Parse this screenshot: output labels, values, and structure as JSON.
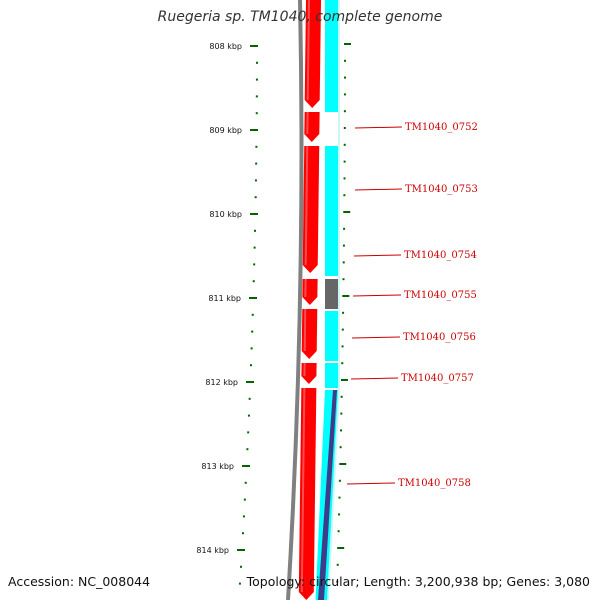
{
  "title": "Ruegeria sp. TM1040, complete genome",
  "accession": "Accession: NC_008044",
  "summary": "Topology: circular; Length: 3,200,938 bp; Genes: 3,080",
  "colors": {
    "forward_cds": "#ff0000",
    "reverse_cds": "#00ffff",
    "other_feature": "#666666",
    "backbone": "#808080",
    "ticks": "#006400",
    "gene_label": "#cc0000",
    "gc_skew": "#3d3d8a"
  },
  "scale": {
    "major_ticks": [
      "808 kbp",
      "809 kbp",
      "810 kbp",
      "811 kbp",
      "812 kbp",
      "813 kbp",
      "814 kbp"
    ]
  },
  "gene_labels": [
    "TM1040_0752",
    "TM1040_0753",
    "TM1040_0754",
    "TM1040_0755",
    "TM1040_0756",
    "TM1040_0757",
    "TM1040_0758"
  ]
}
